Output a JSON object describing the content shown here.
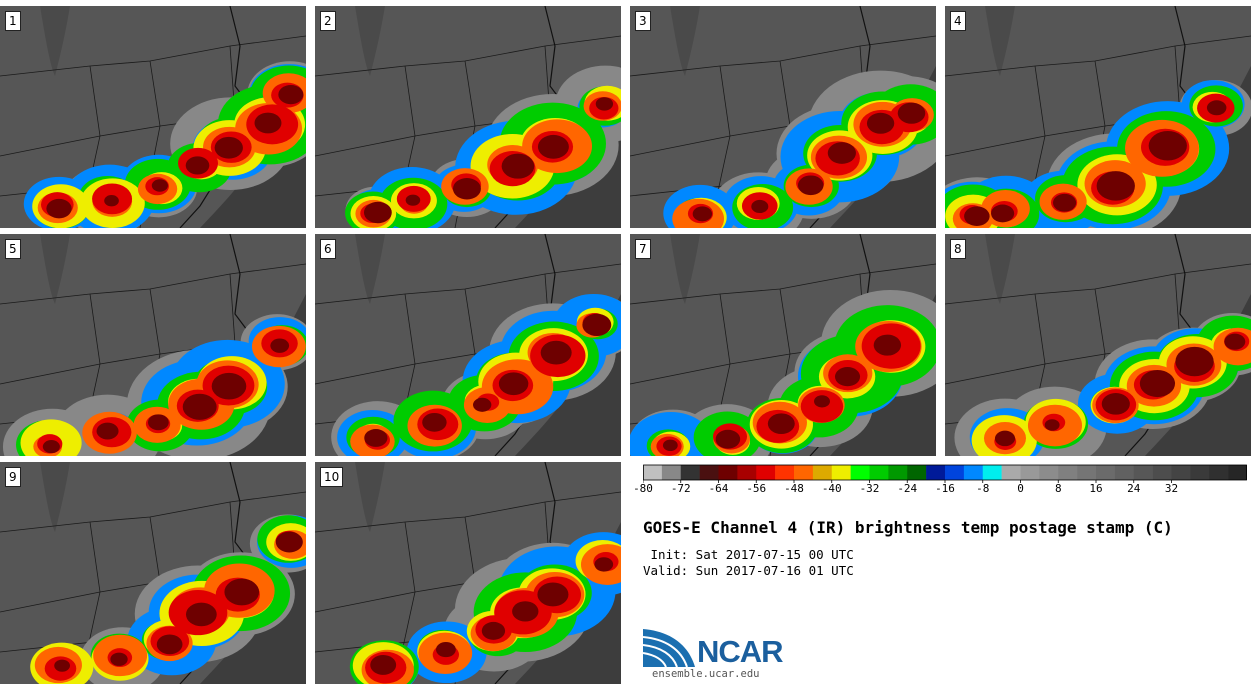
{
  "panels": [
    {
      "label": "1"
    },
    {
      "label": "2"
    },
    {
      "label": "3"
    },
    {
      "label": "4"
    },
    {
      "label": "5"
    },
    {
      "label": "6"
    },
    {
      "label": "7"
    },
    {
      "label": "8"
    },
    {
      "label": "9"
    },
    {
      "label": "10"
    }
  ],
  "colorbar": {
    "colors": [
      "#c0c0c0",
      "#888888",
      "#333333",
      "#4a1010",
      "#6e0000",
      "#a80000",
      "#e00000",
      "#ff3300",
      "#ff6600",
      "#ddaa00",
      "#eeee00",
      "#00ff00",
      "#00cc00",
      "#009900",
      "#006600",
      "#001a99",
      "#0044dd",
      "#0088ff",
      "#00eeee",
      "#aaaaaa",
      "#999999",
      "#8c8c8c",
      "#808080",
      "#757575",
      "#6b6b6b",
      "#616161",
      "#575757",
      "#4d4d4d",
      "#444444",
      "#3a3a3a",
      "#303030",
      "#262626"
    ],
    "ticks": [
      "-80",
      "-72",
      "-64",
      "-56",
      "-48",
      "-40",
      "-32",
      "-24",
      "-16",
      "-8",
      "0",
      "8",
      "16",
      "24",
      "32"
    ]
  },
  "title": "GOES-E Channel 4 (IR) brightness temp postage stamp (C)",
  "init_line": " Init: Sat 2017-07-15 00 UTC",
  "valid_line": "Valid: Sun 2017-07-16 01 UTC",
  "logo": {
    "text": "NCAR",
    "url": "ensemble.ucar.edu",
    "color": "#1b6fb0"
  }
}
